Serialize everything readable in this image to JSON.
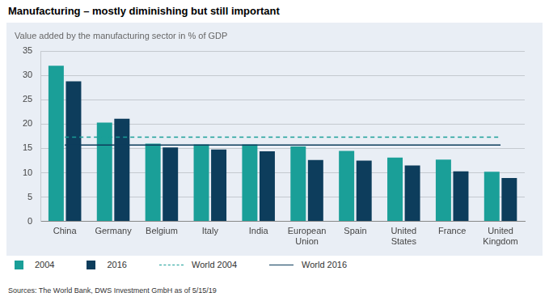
{
  "chart_data": {
    "type": "bar",
    "title": "Manufacturing – mostly diminishing but still important",
    "subtitle": "Value added by the manufacturing sector in % of GDP",
    "source": "Sources: The World Bank, DWS Investment GmbH as of 5/15/19",
    "categories": [
      "China",
      "Germany",
      "Belgium",
      "Italy",
      "India",
      "European Union",
      "Spain",
      "United States",
      "France",
      "United Kingdom"
    ],
    "series": [
      {
        "name": "2004",
        "color": "#1a9f98",
        "values": [
          32.0,
          20.3,
          16.0,
          15.8,
          15.8,
          15.4,
          14.5,
          13.1,
          12.7,
          10.2
        ]
      },
      {
        "name": "2016",
        "color": "#0d3d5c",
        "values": [
          28.8,
          21.1,
          15.2,
          14.8,
          14.4,
          12.6,
          12.5,
          11.5,
          10.3,
          8.9
        ]
      },
      {
        "name": "World 2004",
        "type": "line",
        "line_style": "dashed",
        "color": "#1a9f98",
        "values": [
          17.3,
          17.3,
          17.3,
          17.3,
          17.3,
          17.3,
          17.3,
          17.3,
          17.3,
          17.3
        ]
      },
      {
        "name": "World 2016",
        "type": "line",
        "line_style": "solid",
        "color": "#0d3d5c",
        "values": [
          15.7,
          15.7,
          15.7,
          15.7,
          15.7,
          15.7,
          15.7,
          15.7,
          15.7,
          15.7
        ]
      }
    ],
    "ylim": [
      0,
      35
    ],
    "yticks": [
      0,
      5,
      10,
      15,
      20,
      25,
      30,
      35
    ],
    "grid": true,
    "legend": "bottom-left"
  }
}
